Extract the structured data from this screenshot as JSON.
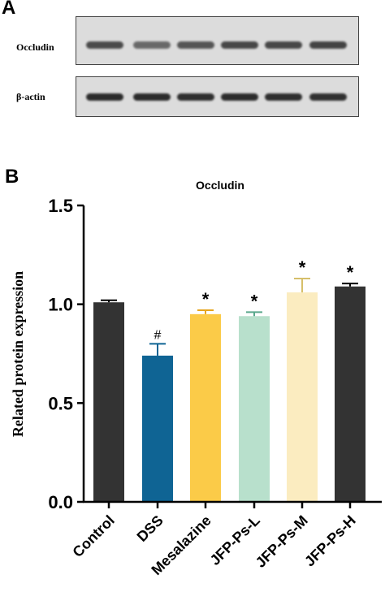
{
  "panel_a": {
    "letter": "A",
    "blots": [
      {
        "label": "Occludin",
        "intensities": [
          0.78,
          0.62,
          0.72,
          0.8,
          0.8,
          0.82
        ]
      },
      {
        "label": "β-actin",
        "intensities": [
          0.95,
          0.95,
          0.93,
          0.95,
          0.93,
          0.92
        ]
      }
    ]
  },
  "panel_b": {
    "letter": "B"
  },
  "chart_data": {
    "type": "bar",
    "title": "Occludin",
    "xlabel": "",
    "ylabel": "Related protein expression",
    "ylim": [
      0,
      1.5
    ],
    "yticks": [
      "0.0",
      "0.5",
      "1.0",
      "1.5"
    ],
    "grid": false,
    "categories": [
      "Control",
      "DSS",
      "Mesalazine",
      "JFP-Ps-L",
      "JFP-Ps-M",
      "JFP-Ps-H"
    ],
    "values": [
      1.01,
      0.74,
      0.95,
      0.94,
      1.06,
      1.09
    ],
    "errors": [
      0.01,
      0.06,
      0.02,
      0.02,
      0.07,
      0.015
    ],
    "annotations": [
      "",
      "#",
      "*",
      "*",
      "*",
      "*"
    ],
    "colors": [
      "#333333",
      "#0f6494",
      "#fbcb48",
      "#b8e0cc",
      "#fbecc0",
      "#333333"
    ],
    "error_colors": [
      "#000000",
      "#0f6494",
      "#e6a51e",
      "#5aa88c",
      "#d6bf6a",
      "#000000"
    ]
  }
}
